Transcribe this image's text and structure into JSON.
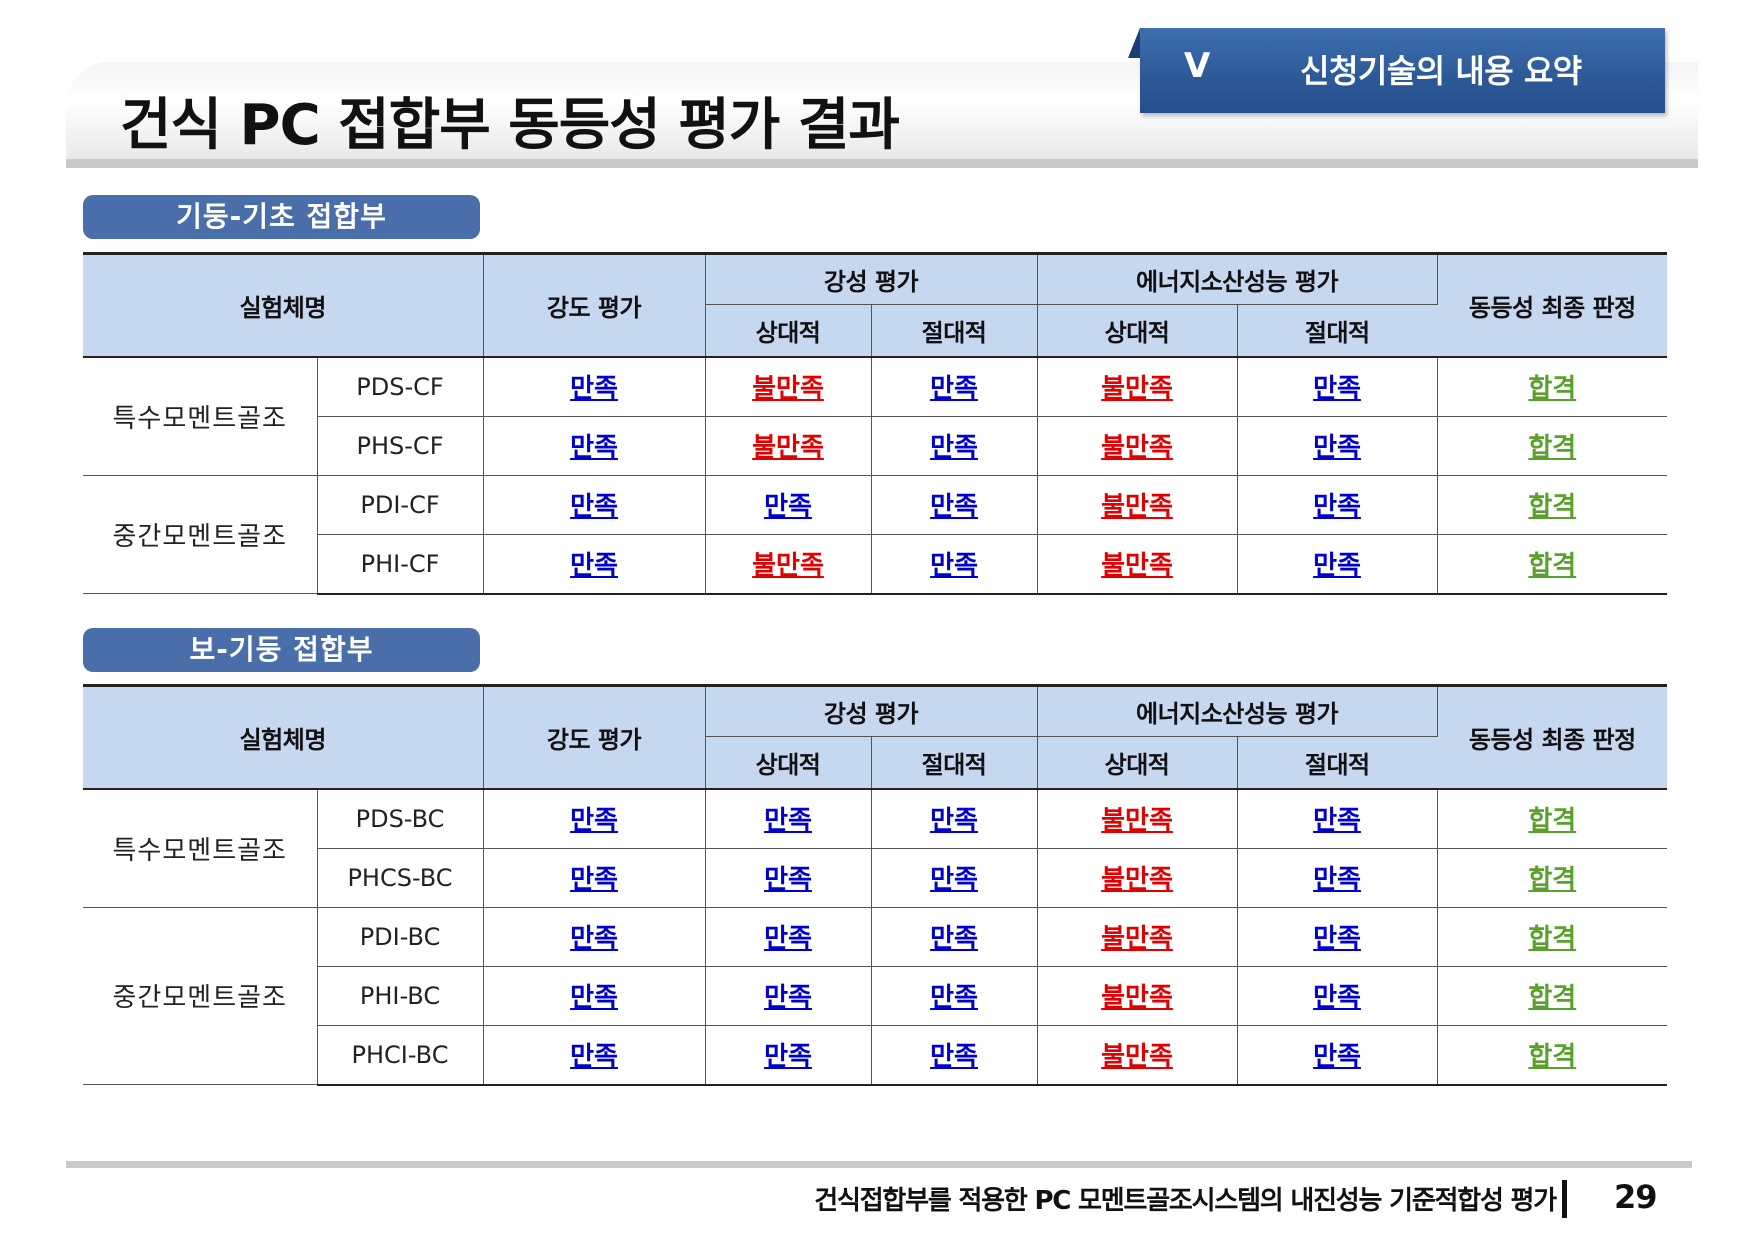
{
  "page": {
    "title": "건식 PC 접합부 동등성 평가 결과",
    "section_number": "V",
    "section_title": "신청기술의 내용 요약",
    "footer_text": "건식접합부를 적용한 PC 모멘트골조시스템의 내진성능 기준적합성 평가",
    "page_number": "29"
  },
  "headers": {
    "name": "실험체명",
    "strength": "강도 평가",
    "stiffness": "강성 평가",
    "energy": "에너지소산성능 평가",
    "final": "동등성 최종 판정",
    "relative": "상대적",
    "absolute": "절대적"
  },
  "result_labels": {
    "ok": "만족",
    "ng": "불만족",
    "pass": "합격"
  },
  "colors": {
    "ok": "#0000cc",
    "ng": "#e00000",
    "pass": "#5aa02c",
    "header_bg": "#c5d8ef",
    "tab_bg": "#4a6ea9"
  },
  "tables": [
    {
      "heading": "기둥-기초 접합부",
      "groups": [
        {
          "name": "특수모멘트골조",
          "rows": [
            {
              "spec": "PDS-CF",
              "results": [
                "ok",
                "ng",
                "ok",
                "ng",
                "ok",
                "pass"
              ]
            },
            {
              "spec": "PHS-CF",
              "results": [
                "ok",
                "ng",
                "ok",
                "ng",
                "ok",
                "pass"
              ]
            }
          ]
        },
        {
          "name": "중간모멘트골조",
          "rows": [
            {
              "spec": "PDI-CF",
              "results": [
                "ok",
                "ok",
                "ok",
                "ng",
                "ok",
                "pass"
              ]
            },
            {
              "spec": "PHI-CF",
              "results": [
                "ok",
                "ng",
                "ok",
                "ng",
                "ok",
                "pass"
              ]
            }
          ]
        }
      ]
    },
    {
      "heading": "보-기둥 접합부",
      "groups": [
        {
          "name": "특수모멘트골조",
          "rows": [
            {
              "spec": "PDS-BC",
              "results": [
                "ok",
                "ok",
                "ok",
                "ng",
                "ok",
                "pass"
              ]
            },
            {
              "spec": "PHCS-BC",
              "results": [
                "ok",
                "ok",
                "ok",
                "ng",
                "ok",
                "pass"
              ]
            }
          ]
        },
        {
          "name": "중간모멘트골조",
          "rows": [
            {
              "spec": "PDI-BC",
              "results": [
                "ok",
                "ok",
                "ok",
                "ng",
                "ok",
                "pass"
              ]
            },
            {
              "spec": "PHI-BC",
              "results": [
                "ok",
                "ok",
                "ok",
                "ng",
                "ok",
                "pass"
              ]
            },
            {
              "spec": "PHCI-BC",
              "results": [
                "ok",
                "ok",
                "ok",
                "ng",
                "ok",
                "pass"
              ]
            }
          ]
        }
      ]
    }
  ]
}
